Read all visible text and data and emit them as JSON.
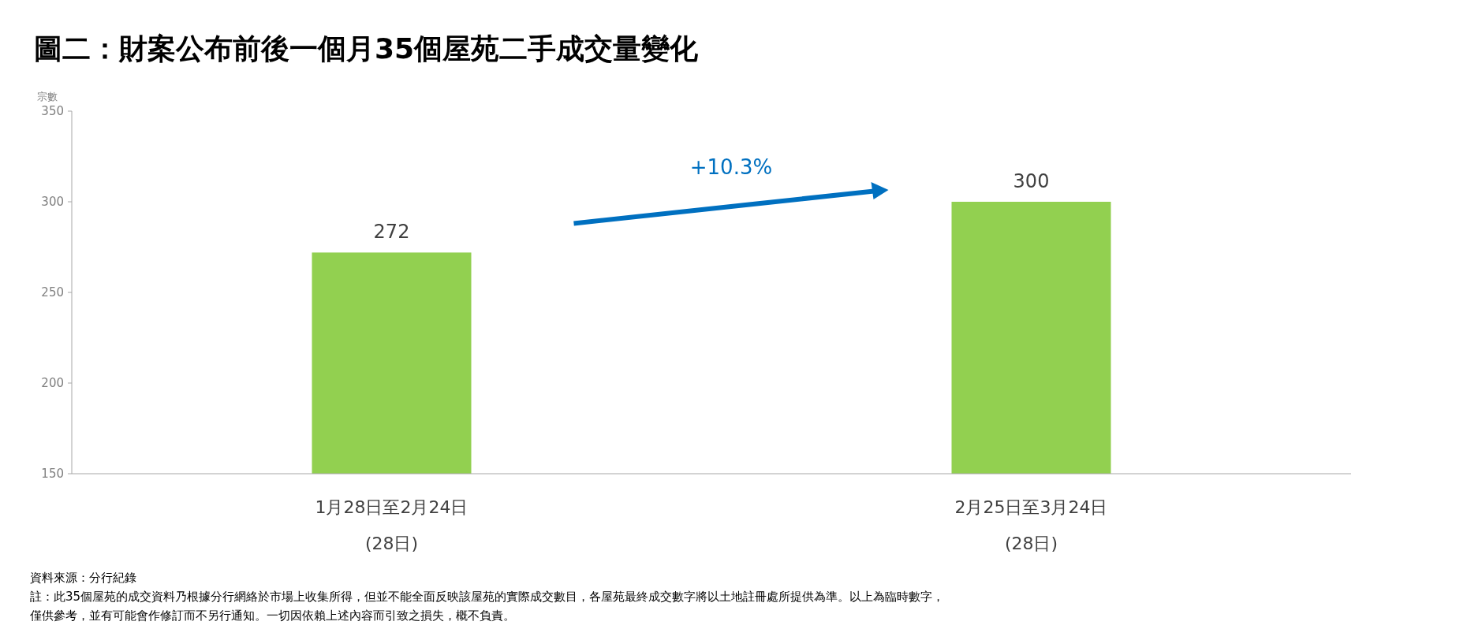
{
  "chart_data": {
    "type": "bar",
    "title": "圖二：財案公布前後一個月35個屋苑二手成交量變化",
    "ylabel": "宗數",
    "categories": [
      "1月28日至2月24日\n(28日)",
      "2月25日至3月24日\n(28日)"
    ],
    "values": [
      272,
      300
    ],
    "color": "#92d050",
    "data_labels": true,
    "ylim": [
      150,
      350
    ],
    "yticks": [
      150,
      200,
      250,
      300,
      350
    ],
    "annotations": [
      "+10.3%",
      "資料來源：分行紀錄",
      "註：此35個屋苑的成交資料乃根據分行網絡於市場上收集所得，但並不能全面反映該屋苑的實際成交數目，各屋苑最終成交數字將以土地註冊處所提供為準。以上為臨時數字，",
      "僅供參考，並有可能會作修訂而不另行通知。一切因依賴上述內容而引致之損失，概不負責。"
    ]
  }
}
